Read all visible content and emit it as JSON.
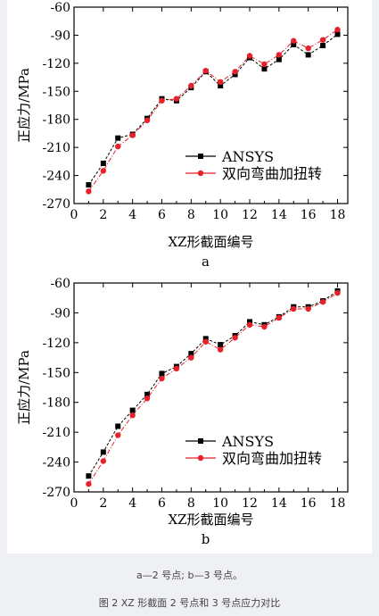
{
  "figure": {
    "subcaption": "a—2 号点; b—3 号点。",
    "caption": "图 2 XZ 形截面 2 号点和 3 号点应力对比"
  },
  "chart_data": [
    {
      "type": "line",
      "panel_label": "a",
      "xlabel": "XZ形截面编号",
      "ylabel": "正应力/MPa",
      "xlim": [
        0,
        18.7
      ],
      "ylim": [
        -270,
        -60
      ],
      "xticks": [
        0,
        2,
        4,
        6,
        8,
        10,
        12,
        14,
        16,
        18
      ],
      "yticks": [
        -60,
        -90,
        -120,
        -150,
        -180,
        -210,
        -240,
        -270
      ],
      "x": [
        1,
        2,
        3,
        4,
        5,
        6,
        7,
        8,
        9,
        10,
        11,
        12,
        13,
        14,
        15,
        16,
        17,
        18
      ],
      "legend_position": "lower-right",
      "series": [
        {
          "name": "ANSYS",
          "color": "#000000",
          "marker": "square",
          "values": [
            -250,
            -227,
            -200,
            -196,
            -179,
            -158,
            -160,
            -146,
            -129,
            -144,
            -132,
            -114,
            -126,
            -116,
            -100,
            -111,
            -101,
            -89
          ]
        },
        {
          "name": "双向弯曲加扭转",
          "color": "#e8202a",
          "marker": "circle",
          "values": [
            -257,
            -235,
            -209,
            -197,
            -181,
            -160,
            -158,
            -144,
            -128,
            -140,
            -129,
            -112,
            -121,
            -111,
            -96,
            -104,
            -95,
            -84
          ]
        }
      ]
    },
    {
      "type": "line",
      "panel_label": "b",
      "xlabel": "XZ形截面编号",
      "ylabel": "正应力/MPa",
      "xlim": [
        0,
        18.7
      ],
      "ylim": [
        -270,
        -60
      ],
      "xticks": [
        0,
        2,
        4,
        6,
        8,
        10,
        12,
        14,
        16,
        18
      ],
      "yticks": [
        -60,
        -90,
        -120,
        -150,
        -180,
        -210,
        -240,
        -270
      ],
      "x": [
        1,
        2,
        3,
        4,
        5,
        6,
        7,
        8,
        9,
        10,
        11,
        12,
        13,
        14,
        15,
        16,
        17,
        18
      ],
      "legend_position": "lower-right",
      "series": [
        {
          "name": "ANSYS",
          "color": "#000000",
          "marker": "square",
          "values": [
            -254,
            -230,
            -204,
            -188,
            -172,
            -151,
            -144,
            -131,
            -116,
            -122,
            -113,
            -99,
            -102,
            -94,
            -84,
            -84,
            -78,
            -68
          ]
        },
        {
          "name": "双向弯曲加扭转",
          "color": "#e8202a",
          "marker": "circle",
          "values": [
            -262,
            -239,
            -213,
            -193,
            -176,
            -156,
            -146,
            -135,
            -119,
            -127,
            -115,
            -102,
            -104,
            -95,
            -86,
            -86,
            -79,
            -70
          ]
        }
      ]
    }
  ]
}
